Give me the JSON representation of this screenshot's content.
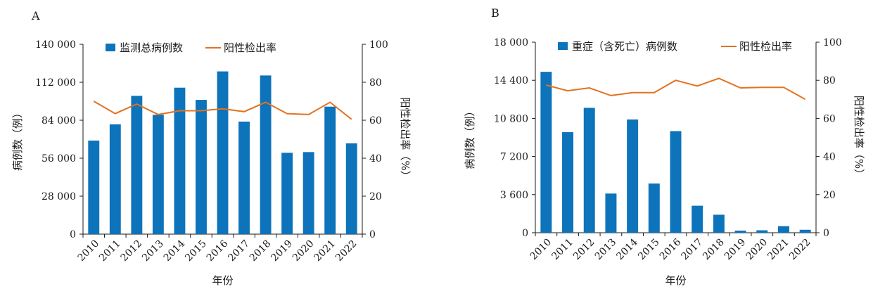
{
  "colors": {
    "bar": "#0d73bb",
    "line": "#e2721f",
    "axis": "#1a1a1a"
  },
  "chart_data": [
    {
      "panel": "A",
      "type": "bar+line",
      "categories": [
        "2010",
        "2011",
        "2012",
        "2013",
        "2014",
        "2015",
        "2016",
        "2017",
        "2018",
        "2019",
        "2020",
        "2021",
        "2022"
      ],
      "series": [
        {
          "name": "监测总病例数",
          "kind": "bar",
          "axis": "left",
          "values": [
            69000,
            81000,
            102000,
            88000,
            108000,
            99000,
            120000,
            83000,
            117000,
            60000,
            60500,
            94000,
            67000
          ]
        },
        {
          "name": "阳性检出率",
          "kind": "line",
          "axis": "right",
          "values": [
            70,
            63.5,
            68.5,
            63,
            65,
            65,
            66,
            64.5,
            69.5,
            63.5,
            63,
            69.5,
            60.5
          ]
        }
      ],
      "xlabel": "年份",
      "ylabel": "病例数（例）",
      "y2label": "阳性检出率（%）",
      "ylim": [
        0,
        140000
      ],
      "yticks": [
        0,
        28000,
        56000,
        84000,
        112000,
        140000
      ],
      "yticklabels": [
        "0",
        "28 000",
        "56 000",
        "84 000",
        "112 000",
        "140 000"
      ],
      "y2lim": [
        0,
        100
      ],
      "y2ticks": [
        0,
        20,
        40,
        60,
        80,
        100
      ],
      "legend_placement": "top"
    },
    {
      "panel": "B",
      "type": "bar+line",
      "categories": [
        "2010",
        "2011",
        "2012",
        "2013",
        "2014",
        "2015",
        "2016",
        "2017",
        "2018",
        "2019",
        "2020",
        "2021",
        "2022"
      ],
      "series": [
        {
          "name": "重症（含死亡）病例数",
          "kind": "bar",
          "axis": "left",
          "values": [
            15200,
            9500,
            11800,
            3700,
            10700,
            4650,
            9600,
            2550,
            1700,
            200,
            230,
            620,
            280
          ]
        },
        {
          "name": "阳性检出率",
          "kind": "line",
          "axis": "right",
          "values": [
            77.5,
            74.5,
            76,
            72,
            73.5,
            73.5,
            80,
            77,
            81,
            76,
            76.3,
            76.3,
            70
          ]
        }
      ],
      "xlabel": "年份",
      "ylabel": "病例数（例）",
      "y2label": "阳性检出率（%）",
      "ylim": [
        0,
        18000
      ],
      "yticks": [
        0,
        3600,
        7200,
        10800,
        14400,
        18000
      ],
      "yticklabels": [
        "0",
        "3 600",
        "7 200",
        "10 800",
        "14 400",
        "18 000"
      ],
      "y2lim": [
        0,
        100
      ],
      "y2ticks": [
        0,
        20,
        40,
        60,
        80,
        100
      ],
      "legend_placement": "top"
    }
  ]
}
